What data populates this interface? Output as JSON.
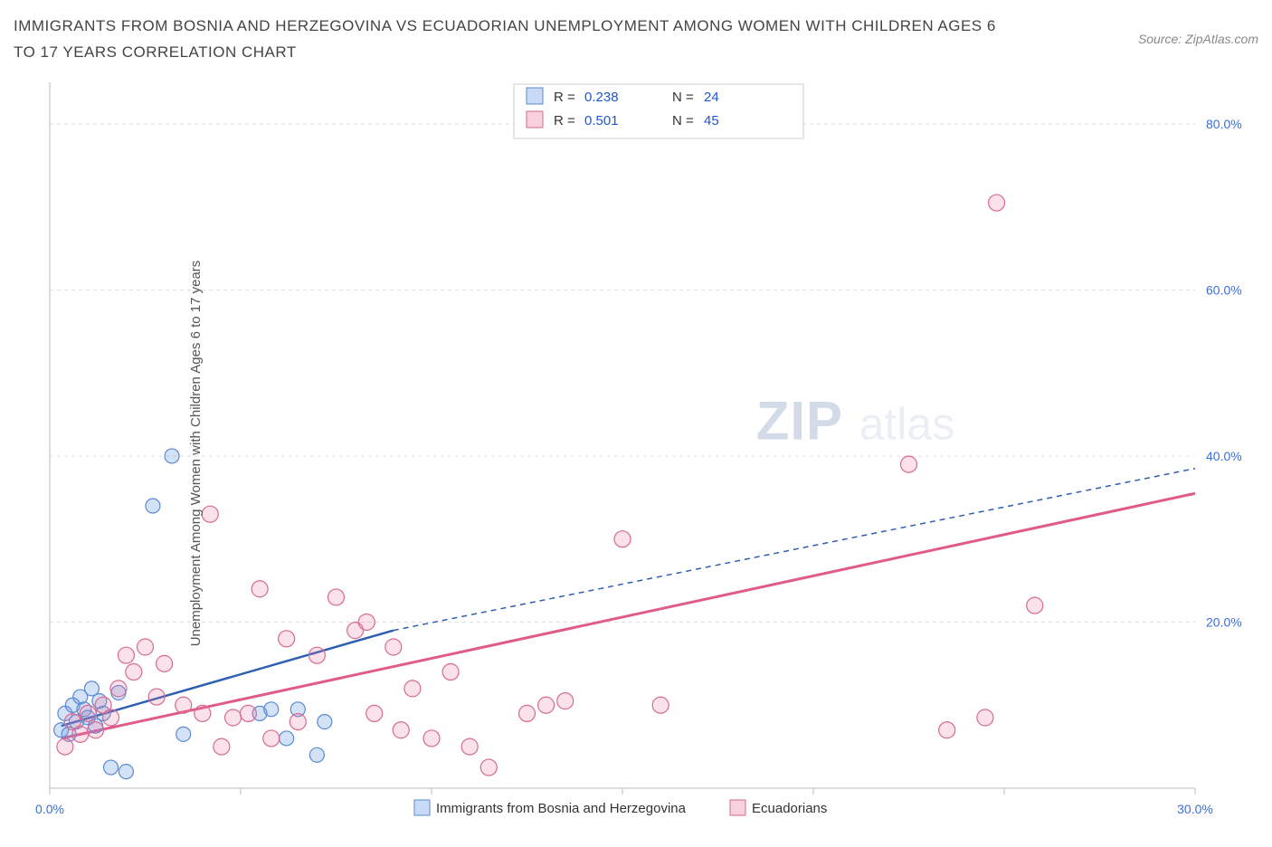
{
  "title": "IMMIGRANTS FROM BOSNIA AND HERZEGOVINA VS ECUADORIAN UNEMPLOYMENT AMONG WOMEN WITH CHILDREN AGES 6 TO 17 YEARS CORRELATION CHART",
  "source": "Source: ZipAtlas.com",
  "ylabel": "Unemployment Among Women with Children Ages 6 to 17 years",
  "chart": {
    "type": "scatter",
    "background_color": "#ffffff",
    "grid_color": "#dddddd",
    "axis_color": "#bbbbbb",
    "tick_label_color": "#3b6fd6",
    "xlim": [
      0,
      30
    ],
    "ylim": [
      0,
      85
    ],
    "xticks": [
      0,
      5,
      10,
      15,
      20,
      25,
      30
    ],
    "xtick_labels": [
      "0.0%",
      "",
      "",
      "",
      "",
      "",
      "30.0%"
    ],
    "yticks": [
      20,
      40,
      60,
      80
    ],
    "ytick_labels": [
      "20.0%",
      "40.0%",
      "60.0%",
      "80.0%"
    ],
    "watermark": {
      "text1": "ZIP",
      "text2": "atlas"
    },
    "stats_box": {
      "rows": [
        {
          "swatch": "blue",
          "r_label": "R =",
          "r": "0.238",
          "n_label": "N =",
          "n": "24"
        },
        {
          "swatch": "pink",
          "r_label": "R =",
          "r": "0.501",
          "n_label": "N =",
          "n": "45"
        }
      ]
    },
    "legend": {
      "items": [
        {
          "swatch": "blue",
          "label": "Immigrants from Bosnia and Herzegovina"
        },
        {
          "swatch": "pink",
          "label": "Ecuadorians"
        }
      ]
    },
    "series": [
      {
        "name": "Immigrants from Bosnia and Herzegovina",
        "color_fill": "rgba(100,150,230,0.28)",
        "color_stroke": "#5a8ad0",
        "marker_radius": 8,
        "points": [
          [
            0.3,
            7
          ],
          [
            0.4,
            9
          ],
          [
            0.5,
            6.5
          ],
          [
            0.6,
            10
          ],
          [
            0.7,
            8
          ],
          [
            0.8,
            11
          ],
          [
            0.9,
            9.5
          ],
          [
            1.0,
            8.5
          ],
          [
            1.1,
            12
          ],
          [
            1.2,
            7.5
          ],
          [
            1.3,
            10.5
          ],
          [
            1.4,
            9
          ],
          [
            1.6,
            2.5
          ],
          [
            1.8,
            11.5
          ],
          [
            2.0,
            2
          ],
          [
            2.7,
            34
          ],
          [
            3.2,
            40
          ],
          [
            3.5,
            6.5
          ],
          [
            5.5,
            9
          ],
          [
            5.8,
            9.5
          ],
          [
            6.2,
            6
          ],
          [
            6.5,
            9.5
          ],
          [
            7.0,
            4
          ],
          [
            7.2,
            8
          ]
        ],
        "trend": {
          "from": [
            0.3,
            7.5
          ],
          "to": [
            9.0,
            19.0
          ],
          "dash_from": [
            9.0,
            19.0
          ],
          "dash_to": [
            30.0,
            38.5
          ],
          "stroke": "#2f5fb0",
          "stroke_width": 2.5,
          "dash": "6 5"
        }
      },
      {
        "name": "Ecuadorians",
        "color_fill": "rgba(235,120,160,0.22)",
        "color_stroke": "#d66a92",
        "marker_radius": 9,
        "points": [
          [
            0.4,
            5
          ],
          [
            0.6,
            8
          ],
          [
            0.8,
            6.5
          ],
          [
            1.0,
            9
          ],
          [
            1.2,
            7
          ],
          [
            1.4,
            10
          ],
          [
            1.6,
            8.5
          ],
          [
            1.8,
            12
          ],
          [
            2.0,
            16
          ],
          [
            2.2,
            14
          ],
          [
            2.5,
            17
          ],
          [
            2.8,
            11
          ],
          [
            3.0,
            15
          ],
          [
            3.5,
            10
          ],
          [
            4.0,
            9
          ],
          [
            4.2,
            33
          ],
          [
            4.5,
            5
          ],
          [
            4.8,
            8.5
          ],
          [
            5.2,
            9
          ],
          [
            5.5,
            24
          ],
          [
            5.8,
            6
          ],
          [
            6.2,
            18
          ],
          [
            6.5,
            8
          ],
          [
            7.0,
            16
          ],
          [
            7.5,
            23
          ],
          [
            8.0,
            19
          ],
          [
            8.3,
            20
          ],
          [
            8.5,
            9
          ],
          [
            9.0,
            17
          ],
          [
            9.2,
            7
          ],
          [
            9.5,
            12
          ],
          [
            10.0,
            6
          ],
          [
            10.5,
            14
          ],
          [
            11.0,
            5
          ],
          [
            11.5,
            2.5
          ],
          [
            12.5,
            9
          ],
          [
            13.0,
            10
          ],
          [
            13.5,
            10.5
          ],
          [
            15.0,
            30
          ],
          [
            16.0,
            10
          ],
          [
            22.5,
            39
          ],
          [
            24.5,
            8.5
          ],
          [
            25.8,
            22
          ],
          [
            24.8,
            70.5
          ],
          [
            23.5,
            7
          ]
        ],
        "trend": {
          "from": [
            0.3,
            6.0
          ],
          "to": [
            30.0,
            35.5
          ],
          "stroke": "#e05a8a",
          "stroke_width": 3
        }
      }
    ]
  }
}
